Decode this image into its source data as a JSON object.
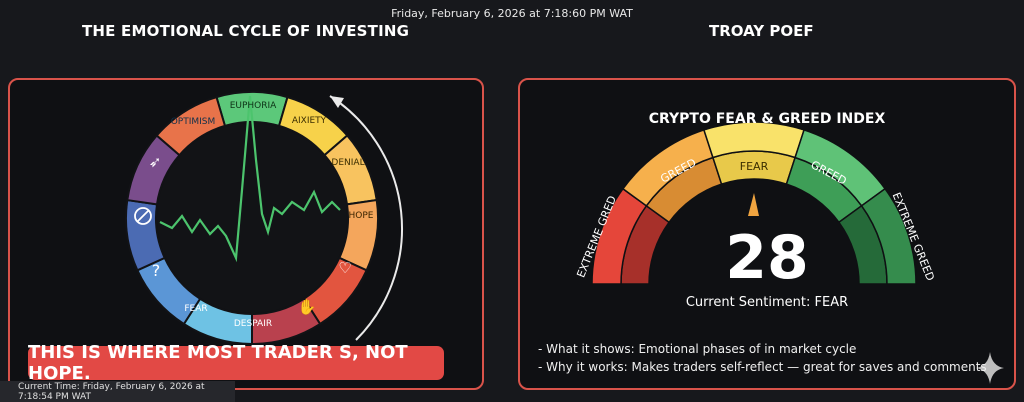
{
  "timestamp": "Friday, February 6, 2026 at 7:18:60 PM WAT",
  "left_panel": {
    "title": "THE EMOTIONAL CYCLE OF INVESTING",
    "segments": [
      "EUPHORIA",
      "AIXIETY",
      "DENIAL",
      "HOPE",
      "DESPAIR",
      "FEAR",
      "OPTIMISM"
    ],
    "segment_colors": [
      "#5cc87a",
      "#f7d24a",
      "#f8c35f",
      "#f4a65c",
      "#e2553f",
      "#b9414e",
      "#6ec2e4",
      "#5b96d6",
      "#4b6bb3",
      "#7a4d8c",
      "#e8734a"
    ],
    "icons": [
      "rocket-icon",
      "no-sign-icon",
      "question-icon",
      "broken-heart-icon",
      "praying-hands-icon"
    ],
    "banner": "THIS IS WHERE MOST TRADER S, NOT HOPE.",
    "current_time": "Current Time: Friday, February 6, 2026 at 7:18:54 PM WAT"
  },
  "right_panel": {
    "title": "TROAY POEF",
    "gauge_title": "CRYPTO FEAR & GREED INDEX",
    "value": "28",
    "sentiment": "Current Sentiment: FEAR",
    "zones": [
      "EXTREME GRED",
      "GREED",
      "FEAR",
      "GREED",
      "EXTREME GREED"
    ],
    "zone_colors": [
      "#d23f34",
      "#f0a440",
      "#f7dc5a",
      "#52b86a",
      "#2e7f45"
    ],
    "bullets": [
      "- What it shows: Emotional phases of in market cycle",
      "- Why it works: Makes traders self-reflect — great for saves and comments"
    ]
  }
}
